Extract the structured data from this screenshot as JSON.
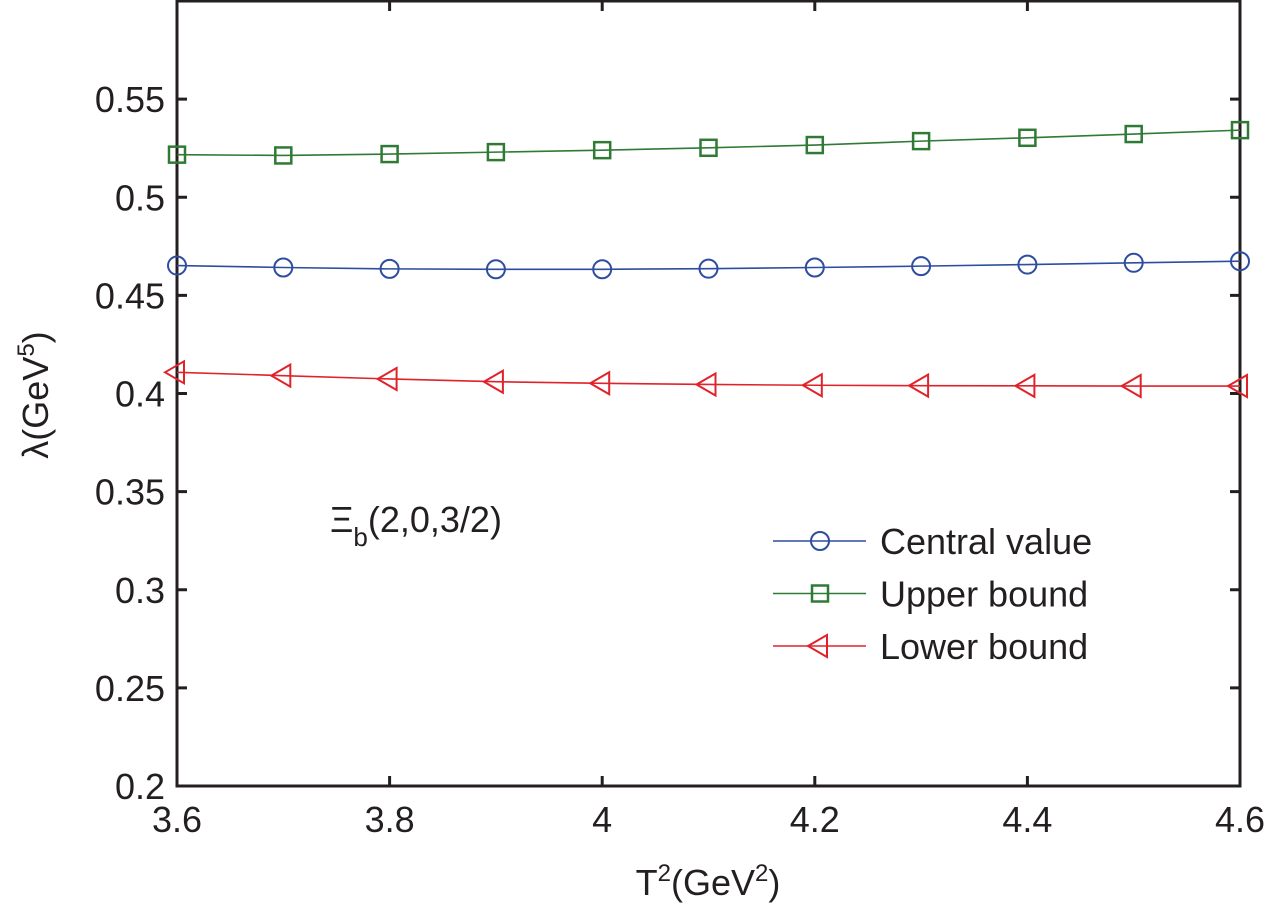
{
  "chart_data": {
    "type": "line",
    "title": "",
    "xlabel": "T^2(GeV^2)",
    "ylabel": "λ(GeV^5)",
    "xlim": [
      3.6,
      4.6
    ],
    "ylim": [
      0.2,
      0.6
    ],
    "xticks": [
      "3.6",
      "3.8",
      "4",
      "4.2",
      "4.4",
      "4.6"
    ],
    "yticks": [
      "0.2",
      "0.25",
      "0.3",
      "0.35",
      "0.4",
      "0.45",
      "0.5",
      "0.55"
    ],
    "grid": false,
    "legend_position": "right",
    "annotation": {
      "main": "Ξ",
      "sub": "b",
      "rest": "(2,0,3/2)"
    },
    "x": [
      3.6,
      3.7,
      3.8,
      3.9,
      4.0,
      4.1,
      4.2,
      4.3,
      4.4,
      4.5,
      4.6
    ],
    "series": [
      {
        "name": "Central value",
        "color": "#2e4da0",
        "marker": "circle",
        "values": [
          0.4652,
          0.4642,
          0.4635,
          0.4633,
          0.4633,
          0.4636,
          0.4642,
          0.4649,
          0.4657,
          0.4666,
          0.4674
        ]
      },
      {
        "name": "Upper bound",
        "color": "#2f7a35",
        "marker": "square",
        "values": [
          0.5217,
          0.5213,
          0.522,
          0.523,
          0.524,
          0.5252,
          0.5266,
          0.5286,
          0.5303,
          0.5322,
          0.5342
        ]
      },
      {
        "name": "Lower bound",
        "color": "#e0232b",
        "marker": "triangle-left",
        "values": [
          0.4108,
          0.4091,
          0.4074,
          0.406,
          0.4052,
          0.4046,
          0.4042,
          0.404,
          0.4039,
          0.4038,
          0.4038
        ]
      }
    ]
  }
}
